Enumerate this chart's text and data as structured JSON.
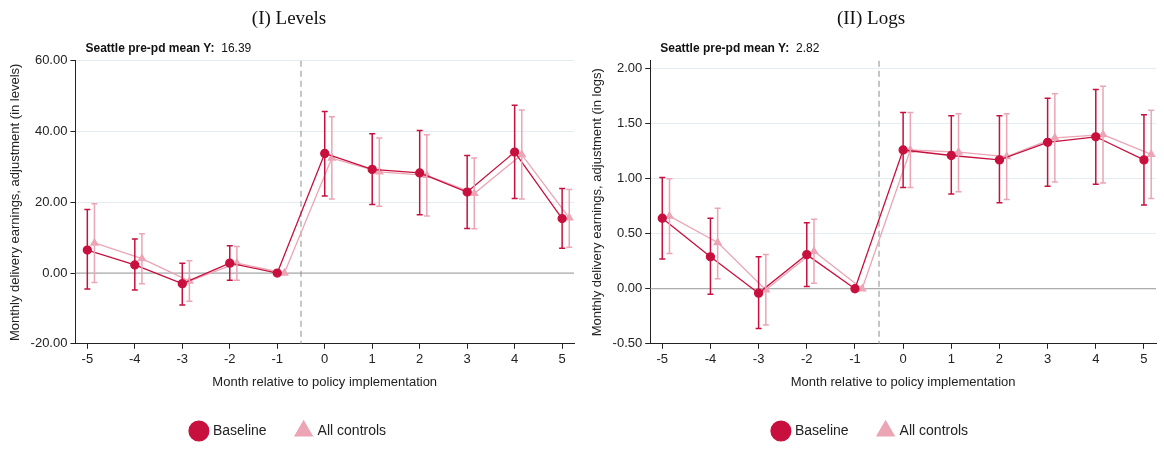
{
  "chart_data": [
    {
      "type": "line",
      "title": "(I) Levels",
      "xlabel": "Month relative to policy implementation",
      "ylabel": "Monthly delivery earnings, adjustment (in levels)",
      "annotations": [
        "Seattle pre-pd mean Y:  16.39"
      ],
      "xlim": [
        -5.25,
        5.25
      ],
      "xticks": [
        -5,
        -4,
        -3,
        -2,
        -1,
        0,
        1,
        2,
        3,
        4,
        5
      ],
      "ylim": [
        -20,
        60
      ],
      "yticks": [
        {
          "value": -20,
          "label": "-20.00"
        },
        {
          "value": 0,
          "label": "0.00"
        },
        {
          "value": 20,
          "label": "20.00"
        },
        {
          "value": 40,
          "label": "40.00"
        },
        {
          "value": 60,
          "label": "60.00"
        }
      ],
      "grid": "y",
      "legend": "bottom",
      "line_style": "solid",
      "ref_lines": [
        {
          "axis": "x",
          "value": -0.5,
          "color": "#8c8c8c",
          "line_style": "dashed"
        },
        {
          "axis": "y",
          "value": 0,
          "color": "#9a9a9a",
          "line_style": "solid"
        }
      ],
      "series": [
        {
          "name": "Baseline",
          "color": "#c8103e",
          "marker": "circle",
          "x": [
            -5,
            -4,
            -3,
            -2,
            -1,
            0,
            1,
            2,
            3,
            4,
            5
          ],
          "values": [
            6.5,
            2.3,
            -3,
            2.8,
            0,
            33.8,
            29.3,
            28.3,
            22.9,
            34.2,
            15.4
          ],
          "errors": [
            [
              -4.5,
              18
            ],
            [
              -4.8,
              9.6
            ],
            [
              -9,
              2.8
            ],
            [
              -2,
              7.7
            ],
            null,
            [
              21.8,
              45.7
            ],
            [
              19.4,
              39.4
            ],
            [
              16.5,
              40.3
            ],
            [
              12.6,
              33.2
            ],
            [
              21.1,
              47.4
            ],
            [
              7,
              23.9
            ]
          ]
        },
        {
          "name": "All controls",
          "color": "#eba5b4",
          "marker": "triangle",
          "x": [
            -4.85,
            -3.85,
            -2.85,
            -1.85,
            -0.85,
            0.15,
            1.15,
            2.15,
            3.15,
            4.15,
            5.15
          ],
          "values": [
            8.5,
            4.1,
            -2.3,
            2.8,
            0,
            32.5,
            28.6,
            27.6,
            22.5,
            33.5,
            15.6
          ],
          "errors": [
            [
              -2.7,
              19.6
            ],
            [
              -3,
              11.1
            ],
            [
              -8,
              3.5
            ],
            [
              -2,
              7.5
            ],
            null,
            [
              20.9,
              44.2
            ],
            [
              18.9,
              38.2
            ],
            [
              16.1,
              39.1
            ],
            [
              12.5,
              32.5
            ],
            [
              20.9,
              46.1
            ],
            [
              7.3,
              23.6
            ]
          ]
        }
      ]
    },
    {
      "type": "line",
      "title": "(II) Logs",
      "xlabel": "Month relative to policy implementation",
      "ylabel": "Monthly delivery earnings, adjustment (in logs)",
      "annotations": [
        "Seattle pre-pd mean Y:  2.82"
      ],
      "xlim": [
        -5.25,
        5.25
      ],
      "xticks": [
        -5,
        -4,
        -3,
        -2,
        -1,
        0,
        1,
        2,
        3,
        4,
        5
      ],
      "ylim": [
        -0.5,
        2.07
      ],
      "yticks": [
        {
          "value": -0.5,
          "label": "-0.50"
        },
        {
          "value": 0,
          "label": "0.00"
        },
        {
          "value": 0.5,
          "label": "0.50"
        },
        {
          "value": 1,
          "label": "1.00"
        },
        {
          "value": 1.5,
          "label": "1.50"
        },
        {
          "value": 2,
          "label": "2.00"
        }
      ],
      "grid": "y",
      "legend": "bottom",
      "line_style": "solid",
      "ref_lines": [
        {
          "axis": "x",
          "value": -0.5,
          "color": "#8c8c8c",
          "line_style": "dashed"
        },
        {
          "axis": "y",
          "value": 0,
          "color": "#9a9a9a",
          "line_style": "solid"
        }
      ],
      "series": [
        {
          "name": "Baseline",
          "color": "#c8103e",
          "marker": "circle",
          "x": [
            -5,
            -4,
            -3,
            -2,
            -1,
            0,
            1,
            2,
            3,
            4,
            5
          ],
          "values": [
            0.64,
            0.29,
            -0.04,
            0.31,
            0,
            1.26,
            1.21,
            1.17,
            1.33,
            1.38,
            1.17
          ],
          "errors": [
            [
              0.27,
              1.01
            ],
            [
              -0.05,
              0.64
            ],
            [
              -0.36,
              0.29
            ],
            [
              0.02,
              0.6
            ],
            null,
            [
              0.92,
              1.6
            ],
            [
              0.86,
              1.57
            ],
            [
              0.78,
              1.57
            ],
            [
              0.93,
              1.73
            ],
            [
              0.95,
              1.81
            ],
            [
              0.76,
              1.58
            ]
          ]
        },
        {
          "name": "All controls",
          "color": "#eba5b4",
          "marker": "triangle",
          "x": [
            -4.85,
            -3.85,
            -2.85,
            -1.85,
            -0.85,
            0.15,
            1.15,
            2.15,
            3.15,
            4.15,
            5.15
          ],
          "values": [
            0.66,
            0.42,
            -0.01,
            0.34,
            0,
            1.26,
            1.24,
            1.2,
            1.37,
            1.4,
            1.22
          ],
          "errors": [
            [
              0.32,
              1
            ],
            [
              0.09,
              0.73
            ],
            [
              -0.33,
              0.31
            ],
            [
              0.05,
              0.63
            ],
            null,
            [
              0.92,
              1.6
            ],
            [
              0.88,
              1.59
            ],
            [
              0.81,
              1.59
            ],
            [
              0.97,
              1.77
            ],
            [
              0.96,
              1.84
            ],
            [
              0.82,
              1.62
            ]
          ]
        }
      ]
    }
  ]
}
